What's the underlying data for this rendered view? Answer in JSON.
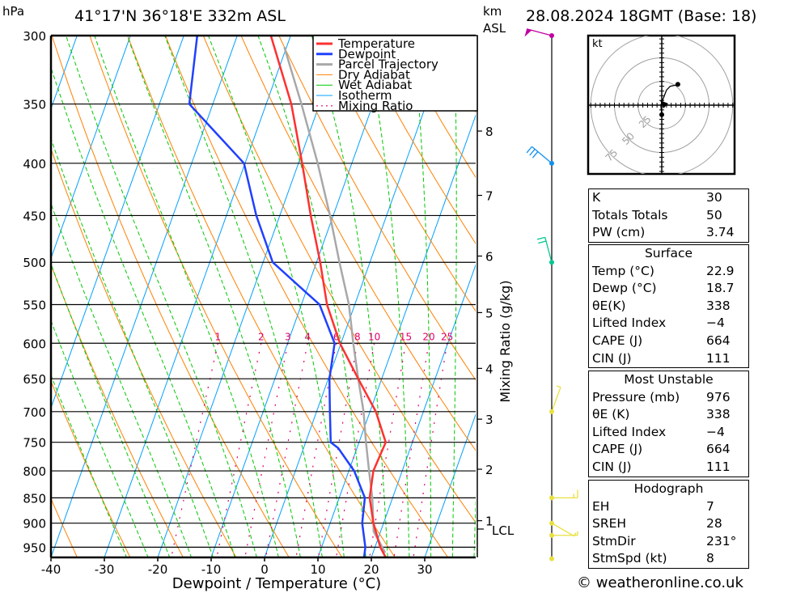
{
  "header": {
    "pressure_unit": "hPa",
    "location": "41°17'N  36°18'E  332m  ASL",
    "km_label": "km",
    "asl_label": "ASL",
    "datetime": "28.08.2024  18GMT  (Base: 18)"
  },
  "footer": {
    "copyright": "© weatheronline.co.uk"
  },
  "colors": {
    "temperature": "#ff3030",
    "dewpoint": "#2040ff",
    "parcel": "#a8a8a8",
    "dry_adiabat": "#ff8000",
    "wet_adiabat": "#00c800",
    "isotherm": "#00a0ff",
    "mixing_ratio": "#e0006a"
  },
  "chart_data": {
    "type": "line",
    "subtype": "skew-T log-P",
    "xlabel": "Dewpoint / Temperature (°C)",
    "ylabel": "hPa",
    "right_label": "Mixing Ratio (g/kg)",
    "xlim": [
      -40,
      40
    ],
    "ylim": [
      975,
      300
    ],
    "pressure_ticks": [
      300,
      350,
      400,
      450,
      500,
      550,
      600,
      650,
      700,
      750,
      800,
      850,
      900,
      950
    ],
    "temperature_ticks": [
      -40,
      -30,
      -20,
      -10,
      0,
      10,
      20,
      30
    ],
    "km_ticks": [
      {
        "km": "8",
        "p": 372
      },
      {
        "km": "7",
        "p": 430
      },
      {
        "km": "6",
        "p": 493
      },
      {
        "km": "5",
        "p": 560
      },
      {
        "km": "4",
        "p": 635
      },
      {
        "km": "3",
        "p": 712
      },
      {
        "km": "2",
        "p": 797
      },
      {
        "km": "1",
        "p": 895
      }
    ],
    "lcl": {
      "label": "LCL",
      "p": 912
    },
    "mixing_ratio_lines": [
      1,
      2,
      3,
      4,
      6,
      8,
      10,
      15,
      20,
      25
    ],
    "legend": [
      "Temperature",
      "Dewpoint",
      "Parcel Trajectory",
      "Dry Adiabat",
      "Wet Adiabat",
      "Isotherm",
      "Mixing Ratio"
    ],
    "series": [
      {
        "name": "Temperature",
        "p": [
          300,
          350,
          400,
          450,
          500,
          550,
          600,
          650,
          700,
          750,
          800,
          850,
          900,
          950,
          975
        ],
        "t": [
          -33.7,
          -25.3,
          -19.3,
          -14.2,
          -9.3,
          -5.2,
          -0.2,
          5.6,
          11.1,
          15.0,
          14.6,
          15.7,
          18.1,
          21.0,
          22.9
        ]
      },
      {
        "name": "Dewpoint",
        "p": [
          300,
          350,
          400,
          450,
          500,
          550,
          600,
          650,
          700,
          750,
          760,
          800,
          850,
          900,
          950,
          975
        ],
        "t": [
          -47.5,
          -44.4,
          -30.2,
          -24.4,
          -18.2,
          -6.6,
          -1.2,
          0.2,
          2.5,
          4.7,
          6.5,
          11.0,
          14.8,
          16.0,
          18.2,
          18.7
        ]
      },
      {
        "name": "Parcel Trajectory",
        "p": [
          308,
          350,
          400,
          450,
          500,
          550,
          600,
          650,
          700,
          750,
          800,
          850,
          917,
          962
        ],
        "t": [
          -30.4,
          -23.4,
          -16.4,
          -10.6,
          -5.7,
          -1.1,
          2.3,
          5.6,
          8.8,
          11.3,
          13.8,
          16.2,
          18.7,
          22.3
        ]
      }
    ],
    "wind_barbs": [
      {
        "p": 300,
        "dir": 255,
        "spd": 50,
        "color": "#c000a0"
      },
      {
        "p": 400,
        "dir": 230,
        "spd": 30,
        "color": "#1090f0"
      },
      {
        "p": 500,
        "dir": 195,
        "spd": 20,
        "color": "#00c890"
      },
      {
        "p": 700,
        "dir": 160,
        "spd": 5,
        "color": "#e8e040"
      },
      {
        "p": 850,
        "dir": 90,
        "spd": 15,
        "color": "#e8e040"
      },
      {
        "p": 900,
        "dir": 60,
        "spd": 5,
        "color": "#e8e040"
      },
      {
        "p": 925,
        "dir": 90,
        "spd": 5,
        "color": "#e8e040"
      },
      {
        "p": 975,
        "dir": 0,
        "spd": 0,
        "color": "#e8e040"
      }
    ],
    "hodograph": {
      "unit_label": "kt",
      "rings": [
        25,
        50,
        75
      ],
      "u": [
        0,
        -1,
        0,
        2,
        5,
        9,
        14,
        17
      ],
      "v": [
        -10,
        0,
        3,
        8,
        16,
        20,
        21,
        22
      ]
    }
  },
  "indices": {
    "rows": [
      {
        "label": "K",
        "value": "30"
      },
      {
        "label": "Totals Totals",
        "value": "50"
      },
      {
        "label": "PW (cm)",
        "value": "3.74"
      }
    ]
  },
  "surface": {
    "title": "Surface",
    "rows": [
      {
        "label": "Temp (°C)",
        "value": "22.9"
      },
      {
        "label": "Dewp (°C)",
        "value": "18.7"
      },
      {
        "label": "θE(K)",
        "value": "338"
      },
      {
        "label": "Lifted Index",
        "value": "−4"
      },
      {
        "label": "CAPE (J)",
        "value": "664"
      },
      {
        "label": "CIN (J)",
        "value": "111"
      }
    ]
  },
  "most_unstable": {
    "title": "Most Unstable",
    "rows": [
      {
        "label": "Pressure (mb)",
        "value": "976"
      },
      {
        "label": "θE (K)",
        "value": "338"
      },
      {
        "label": "Lifted Index",
        "value": "−4"
      },
      {
        "label": "CAPE (J)",
        "value": "664"
      },
      {
        "label": "CIN (J)",
        "value": "111"
      }
    ]
  },
  "hodograph_table": {
    "title": "Hodograph",
    "rows": [
      {
        "label": "EH",
        "value": "7"
      },
      {
        "label": "SREH",
        "value": "28"
      },
      {
        "label": "StmDir",
        "value": "231°"
      },
      {
        "label": "StmSpd (kt)",
        "value": "8"
      }
    ]
  }
}
